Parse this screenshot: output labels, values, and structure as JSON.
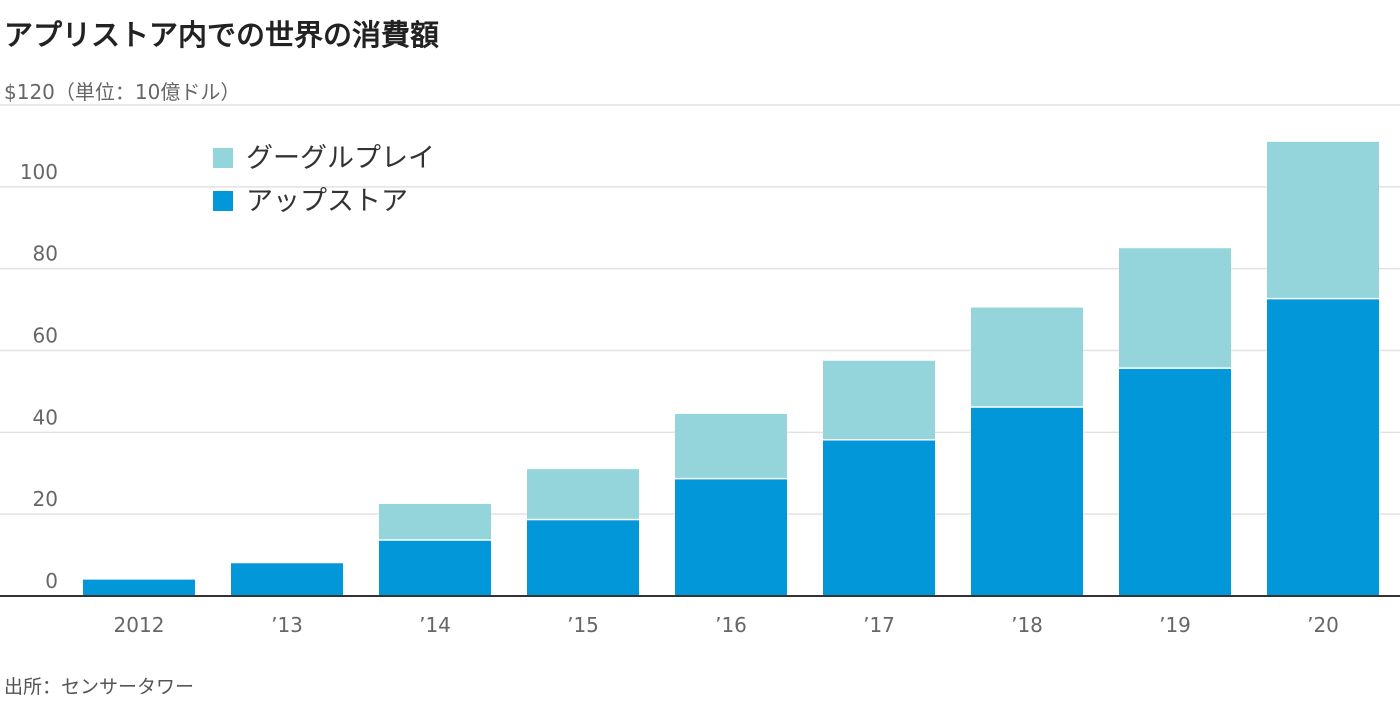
{
  "title": "アプリストア内での世界の消費額",
  "source": "出所：センサータワー",
  "colors": {
    "google_play": "#93d5da",
    "app_store": "#0197d8"
  },
  "chart_data": {
    "type": "bar",
    "stacked": true,
    "categories": [
      "2012",
      "’13",
      "’14",
      "’15",
      "’16",
      "’17",
      "’18",
      "’19",
      "’20"
    ],
    "series": [
      {
        "name": "アップストア",
        "values": [
          4,
          8,
          13.5,
          18.5,
          28.5,
          38,
          46,
          55.5,
          72.5
        ]
      },
      {
        "name": "グーグルプレイ",
        "values": [
          0,
          0,
          9,
          12.5,
          16,
          19.5,
          24.5,
          29.5,
          38.5
        ]
      }
    ],
    "ylabel": "",
    "y_top_label": "$120（単位：10億ドル）",
    "yticks": [
      "0",
      "20",
      "40",
      "60",
      "80",
      "100"
    ],
    "ylim": [
      0,
      120
    ],
    "grid": true,
    "legend_position": "top-left"
  }
}
